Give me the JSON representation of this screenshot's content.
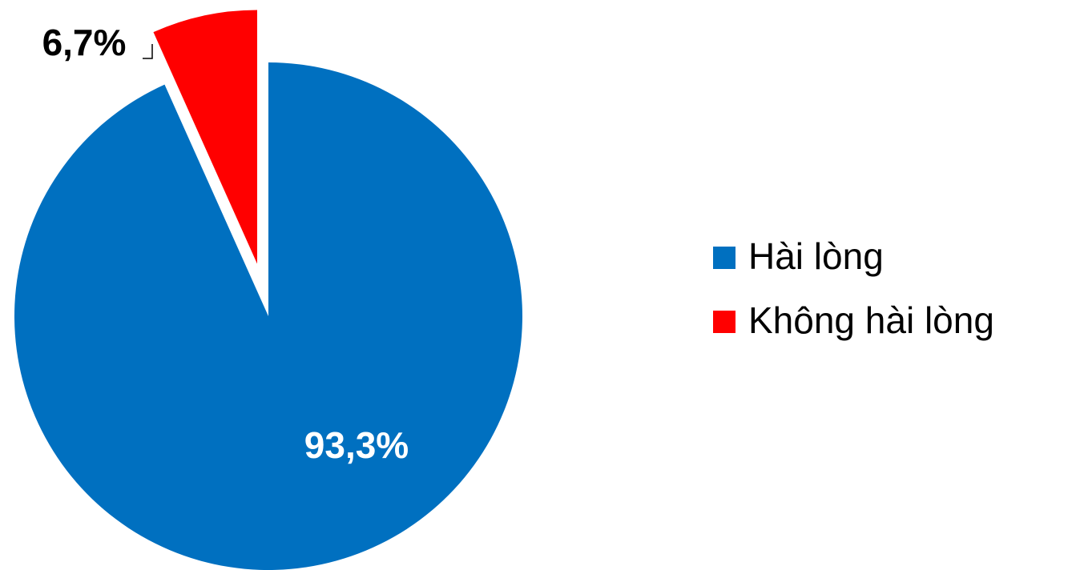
{
  "chart_data": {
    "type": "pie",
    "categories": [
      "Hài lòng",
      "Không hài lòng"
    ],
    "values": [
      93.3,
      6.7
    ],
    "value_labels": [
      "93,3%",
      "6,7%"
    ],
    "colors": [
      "#0070c0",
      "#ff0000"
    ],
    "legend": "right"
  }
}
